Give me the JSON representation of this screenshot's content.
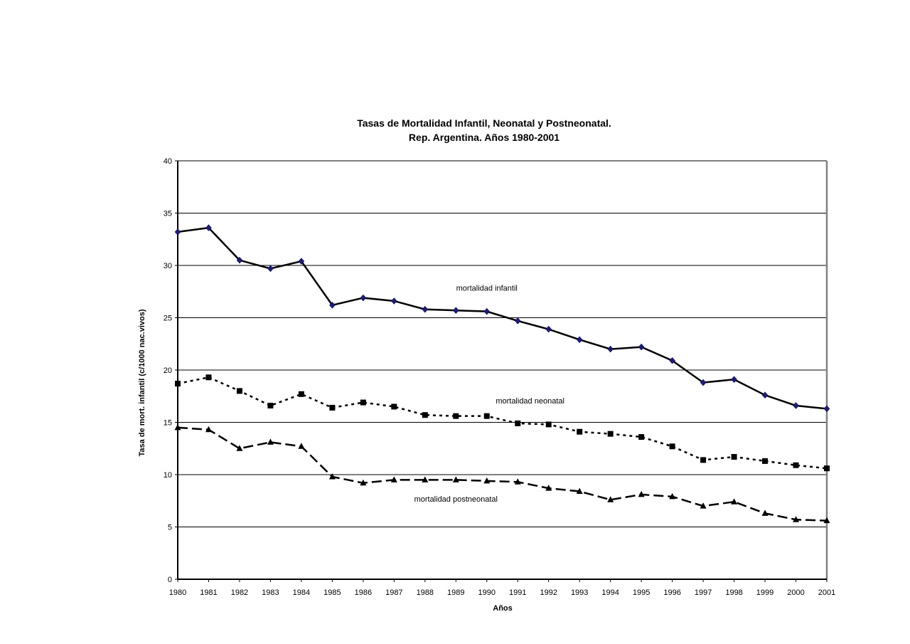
{
  "chart_data": {
    "type": "line",
    "title": "Tasas de Mortalidad  Infantil, Neonatal y Postneonatal.",
    "subtitle": "Rep. Argentina. Años 1980-2001",
    "xlabel": "Años",
    "ylabel": "Tasa de mort. infantil (c/1000  nac.vivos)",
    "ylim": [
      0,
      40
    ],
    "yticks": [
      "0",
      "5",
      "10",
      "15",
      "20",
      "25",
      "30",
      "35",
      "40"
    ],
    "grid": true,
    "categories": [
      "1980",
      "1981",
      "1982",
      "1983",
      "1984",
      "1985",
      "1986",
      "1987",
      "1988",
      "1989",
      "1990",
      "1991",
      "1992",
      "1993",
      "1994",
      "1995",
      "1996",
      "1997",
      "1998",
      "1999",
      "2000",
      "2001"
    ],
    "series": [
      {
        "name": "mortalidad infantil",
        "marker": "diamond",
        "line_style": "solid",
        "marker_color": "#1a1a8c",
        "values": [
          33.2,
          33.6,
          30.5,
          29.7,
          30.4,
          26.2,
          26.9,
          26.6,
          25.8,
          25.7,
          25.6,
          24.7,
          23.9,
          22.9,
          22.0,
          22.2,
          20.9,
          18.8,
          19.1,
          17.6,
          16.6,
          16.3
        ]
      },
      {
        "name": "mortalidad neonatal",
        "marker": "square",
        "line_style": "dotted",
        "marker_color": "#000000",
        "values": [
          18.7,
          19.3,
          18.0,
          16.6,
          17.7,
          16.4,
          16.9,
          16.5,
          15.7,
          15.6,
          15.6,
          14.9,
          14.8,
          14.1,
          13.9,
          13.6,
          12.7,
          11.4,
          11.7,
          11.3,
          10.9,
          10.6
        ]
      },
      {
        "name": "mortalidad postneonatal",
        "marker": "triangle",
        "line_style": "dashed",
        "marker_color": "#000000",
        "values": [
          14.5,
          14.3,
          12.5,
          13.1,
          12.7,
          9.8,
          9.2,
          9.5,
          9.5,
          9.5,
          9.4,
          9.3,
          8.7,
          8.4,
          7.6,
          8.1,
          7.9,
          7.0,
          7.4,
          6.3,
          5.7,
          5.6
        ]
      }
    ],
    "annotations": [
      {
        "text": "mortalidad infantil",
        "x": "1990",
        "y": 27.6
      },
      {
        "text": "mortalidad neonatal",
        "x": "1991.4",
        "y": 16.8
      },
      {
        "text": "mortalidad postneonatal",
        "x": "1989",
        "y": 7.4
      }
    ]
  }
}
